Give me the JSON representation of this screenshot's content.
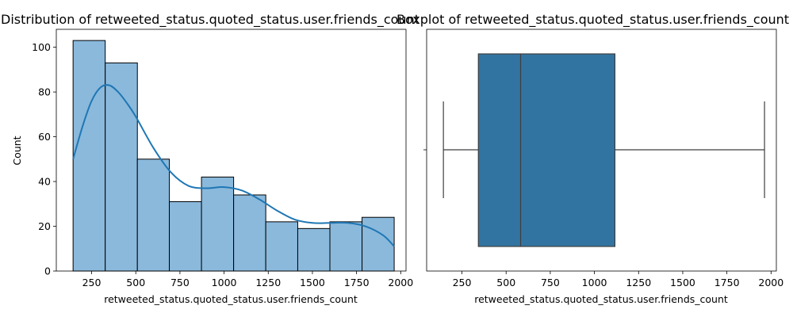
{
  "chart_data": [
    {
      "type": "bar",
      "subtype": "histogram-with-kde",
      "title": "Distribution of retweeted_status.quoted_status.user.friends_count",
      "xlabel": "retweeted_status.quoted_status.user.friends_count",
      "ylabel": "Count",
      "xlim": [
        50,
        2030
      ],
      "ylim": [
        0,
        108
      ],
      "xticks": [
        250,
        500,
        750,
        1000,
        1250,
        1500,
        1750,
        2000
      ],
      "yticks": [
        0,
        20,
        40,
        60,
        80,
        100
      ],
      "bins": [
        {
          "start": 145,
          "end": 327,
          "count": 103
        },
        {
          "start": 327,
          "end": 509,
          "count": 93
        },
        {
          "start": 509,
          "end": 690,
          "count": 50
        },
        {
          "start": 690,
          "end": 872,
          "count": 31
        },
        {
          "start": 872,
          "end": 1054,
          "count": 42
        },
        {
          "start": 1054,
          "end": 1236,
          "count": 34
        },
        {
          "start": 1236,
          "end": 1417,
          "count": 22
        },
        {
          "start": 1417,
          "end": 1599,
          "count": 19
        },
        {
          "start": 1599,
          "end": 1781,
          "count": 22
        },
        {
          "start": 1781,
          "end": 1963,
          "count": 24
        }
      ],
      "kde": {
        "x": [
          145,
          200,
          250,
          300,
          350,
          400,
          450,
          500,
          600,
          700,
          800,
          900,
          1000,
          1100,
          1200,
          1300,
          1400,
          1500,
          1600,
          1700,
          1800,
          1900,
          1963
        ],
        "y": [
          50,
          65,
          76,
          82,
          83,
          80,
          75,
          69,
          55,
          44,
          38,
          37,
          37.5,
          36,
          32,
          27,
          23,
          21.5,
          21.5,
          21.5,
          20,
          16,
          11
        ]
      },
      "colors": {
        "bar_fill": "#8ab9dc",
        "bar_edge": "#000000",
        "kde": "#1f77b4"
      },
      "grid": false
    },
    {
      "type": "boxplot",
      "title": "Boxplot of retweeted_status.quoted_status.user.friends_count",
      "xlabel": "retweeted_status.quoted_status.user.friends_count",
      "xlim": [
        50,
        2030
      ],
      "xticks": [
        250,
        500,
        750,
        1000,
        1250,
        1500,
        1750,
        2000
      ],
      "stats": {
        "whisker_low": 145,
        "q1": 343,
        "median": 582,
        "q3": 1116,
        "whisker_high": 1963
      },
      "colors": {
        "box_fill": "#3274a1",
        "lines": "#3f3f3f"
      },
      "grid": false
    }
  ]
}
